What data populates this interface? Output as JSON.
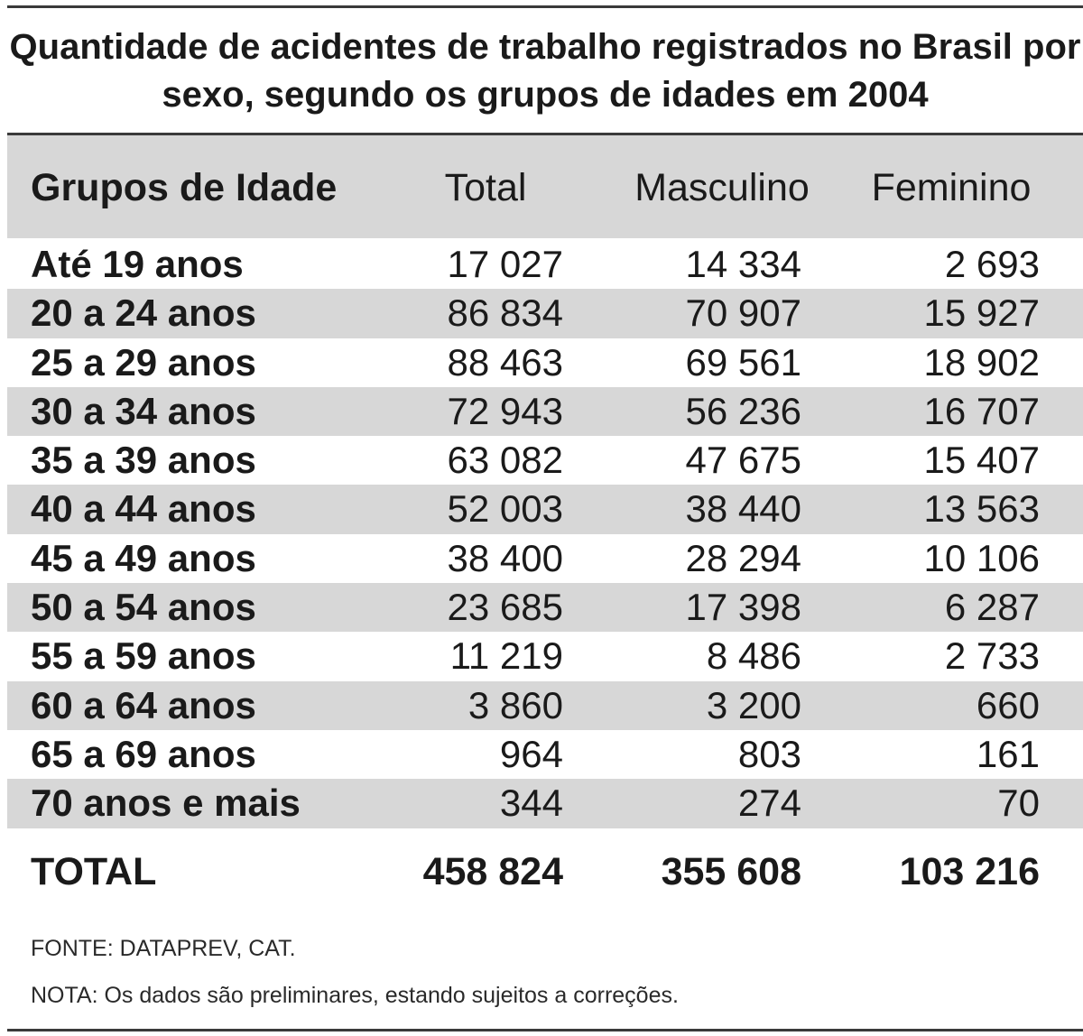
{
  "title": "Quantidade de acidentes de trabalho registrados no Brasil por sexo, segundo os grupos de idades em 2004",
  "columns": {
    "group": "Grupos de Idade",
    "total": "Total",
    "masculino": "Masculino",
    "feminino": "Feminino"
  },
  "rows": [
    {
      "label": "Até 19 anos",
      "total": "17 027",
      "masculino": "14 334",
      "feminino": "2 693"
    },
    {
      "label": "20 a 24 anos",
      "total": "86 834",
      "masculino": "70 907",
      "feminino": "15 927"
    },
    {
      "label": "25 a 29 anos",
      "total": "88 463",
      "masculino": "69 561",
      "feminino": "18 902"
    },
    {
      "label": "30 a 34 anos",
      "total": "72 943",
      "masculino": "56 236",
      "feminino": "16 707"
    },
    {
      "label": "35 a 39 anos",
      "total": "63 082",
      "masculino": "47 675",
      "feminino": "15 407"
    },
    {
      "label": "40 a 44 anos",
      "total": "52 003",
      "masculino": "38 440",
      "feminino": "13 563"
    },
    {
      "label": "45 a 49 anos",
      "total": "38 400",
      "masculino": "28 294",
      "feminino": "10 106"
    },
    {
      "label": "50 a 54 anos",
      "total": "23 685",
      "masculino": "17 398",
      "feminino": "6 287"
    },
    {
      "label": "55 a 59 anos",
      "total": "11 219",
      "masculino": "8 486",
      "feminino": "2 733"
    },
    {
      "label": "60 a 64 anos",
      "total": "3 860",
      "masculino": "3 200",
      "feminino": "660"
    },
    {
      "label": "65 a 69 anos",
      "total": "964",
      "masculino": "803",
      "feminino": "161"
    },
    {
      "label": "70 anos e mais",
      "total": "344",
      "masculino": "274",
      "feminino": "70"
    }
  ],
  "totals": {
    "label": "TOTAL",
    "total": "458 824",
    "masculino": "355 608",
    "feminino": "103 216"
  },
  "source": "FONTE: DATAPREV, CAT.",
  "note": "NOTA: Os dados são preliminares, estando sujeitos a correções."
}
